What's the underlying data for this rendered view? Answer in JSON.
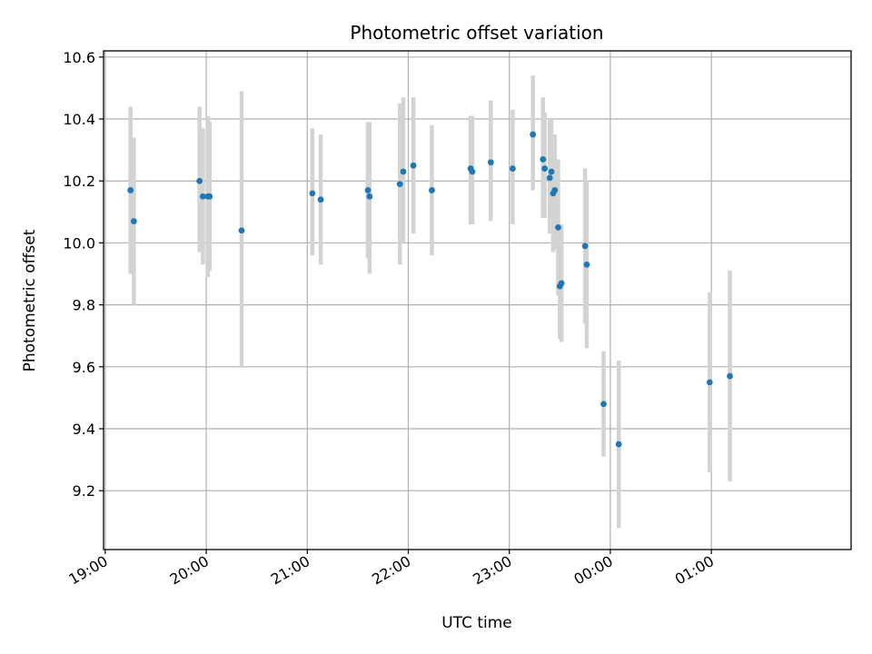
{
  "chart_data": {
    "type": "scatter",
    "title": "Photometric offset variation",
    "xlabel": "UTC time",
    "ylabel": "Photometric offset",
    "x_tick_labels": [
      "19:00",
      "20:00",
      "21:00",
      "22:00",
      "23:00",
      "00:00",
      "01:00"
    ],
    "y_tick_labels": [
      "9.2",
      "9.4",
      "9.6",
      "9.8",
      "10.0",
      "10.2",
      "10.4",
      "10.6"
    ],
    "y_ticks": [
      9.2,
      9.4,
      9.6,
      9.8,
      10.0,
      10.2,
      10.4,
      10.6
    ],
    "ylim": [
      9.01,
      10.62
    ],
    "xlim": [
      "18:59",
      "02:23"
    ],
    "grid": true,
    "legend": "none",
    "colors": {
      "points": "#1f77b4",
      "errorbars": "#d3d3d3",
      "grid": "#b0b0b0"
    },
    "series": [
      {
        "points": [
          {
            "x": "19:15",
            "y": 10.17,
            "ylow": 9.9,
            "yhigh": 10.44
          },
          {
            "x": "19:17",
            "y": 10.07,
            "ylow": 9.8,
            "yhigh": 10.34
          },
          {
            "x": "19:56",
            "y": 10.2,
            "ylow": 9.97,
            "yhigh": 10.44
          },
          {
            "x": "19:58",
            "y": 10.15,
            "ylow": 9.93,
            "yhigh": 10.37
          },
          {
            "x": "20:01",
            "y": 10.15,
            "ylow": 9.89,
            "yhigh": 10.41
          },
          {
            "x": "20:02",
            "y": 10.15,
            "ylow": 9.91,
            "yhigh": 10.39
          },
          {
            "x": "20:21",
            "y": 10.04,
            "ylow": 9.6,
            "yhigh": 10.49
          },
          {
            "x": "21:03",
            "y": 10.16,
            "ylow": 9.96,
            "yhigh": 10.37
          },
          {
            "x": "21:08",
            "y": 10.14,
            "ylow": 9.93,
            "yhigh": 10.35
          },
          {
            "x": "21:36",
            "y": 10.17,
            "ylow": 9.95,
            "yhigh": 10.39
          },
          {
            "x": "21:37",
            "y": 10.15,
            "ylow": 9.9,
            "yhigh": 10.39
          },
          {
            "x": "21:55",
            "y": 10.19,
            "ylow": 9.93,
            "yhigh": 10.45
          },
          {
            "x": "21:57",
            "y": 10.23,
            "ylow": 10.0,
            "yhigh": 10.47
          },
          {
            "x": "22:03",
            "y": 10.25,
            "ylow": 10.03,
            "yhigh": 10.47
          },
          {
            "x": "22:14",
            "y": 10.17,
            "ylow": 9.96,
            "yhigh": 10.38
          },
          {
            "x": "22:37",
            "y": 10.24,
            "ylow": 10.06,
            "yhigh": 10.41
          },
          {
            "x": "22:38",
            "y": 10.23,
            "ylow": 10.06,
            "yhigh": 10.41
          },
          {
            "x": "22:49",
            "y": 10.26,
            "ylow": 10.07,
            "yhigh": 10.46
          },
          {
            "x": "23:02",
            "y": 10.24,
            "ylow": 10.06,
            "yhigh": 10.43
          },
          {
            "x": "23:14",
            "y": 10.35,
            "ylow": 10.17,
            "yhigh": 10.54
          },
          {
            "x": "23:20",
            "y": 10.27,
            "ylow": 10.08,
            "yhigh": 10.47
          },
          {
            "x": "23:21",
            "y": 10.24,
            "ylow": 10.08,
            "yhigh": 10.42
          },
          {
            "x": "23:24",
            "y": 10.21,
            "ylow": 10.03,
            "yhigh": 10.4
          },
          {
            "x": "23:25",
            "y": 10.23,
            "ylow": 10.05,
            "yhigh": 10.4
          },
          {
            "x": "23:26",
            "y": 10.16,
            "ylow": 9.97,
            "yhigh": 10.35
          },
          {
            "x": "23:27",
            "y": 10.17,
            "ylow": 9.98,
            "yhigh": 10.35
          },
          {
            "x": "23:29",
            "y": 10.05,
            "ylow": 9.83,
            "yhigh": 10.27
          },
          {
            "x": "23:30",
            "y": 9.86,
            "ylow": 9.69,
            "yhigh": 10.05
          },
          {
            "x": "23:31",
            "y": 9.87,
            "ylow": 9.68,
            "yhigh": 10.06
          },
          {
            "x": "23:45",
            "y": 9.99,
            "ylow": 9.74,
            "yhigh": 10.24
          },
          {
            "x": "23:46",
            "y": 9.93,
            "ylow": 9.66,
            "yhigh": 10.2
          },
          {
            "x": "23:56",
            "y": 9.48,
            "ylow": 9.31,
            "yhigh": 9.65
          },
          {
            "x": "00:05",
            "y": 9.35,
            "ylow": 9.08,
            "yhigh": 9.62
          },
          {
            "x": "00:59",
            "y": 9.55,
            "ylow": 9.26,
            "yhigh": 9.84
          },
          {
            "x": "01:11",
            "y": 9.57,
            "ylow": 9.23,
            "yhigh": 9.91
          }
        ]
      }
    ]
  }
}
